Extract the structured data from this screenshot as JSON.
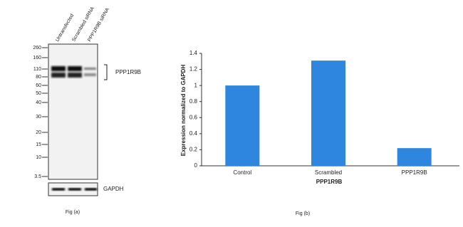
{
  "blot": {
    "lanes": [
      "Untransfected",
      "Scrambled siRNA",
      "PPP1R9B siRNA"
    ],
    "markers": [
      260,
      160,
      110,
      80,
      60,
      50,
      40,
      30,
      20,
      15,
      10,
      3.5
    ],
    "target": "PPP1R9B",
    "loading_control": "GAPDH",
    "caption": "Fig (a)"
  },
  "chart_data": {
    "type": "bar",
    "categories": [
      "Control",
      "Scrambled",
      "PPP1R9B"
    ],
    "values": [
      1.0,
      1.31,
      0.22
    ],
    "color": "#2e86de",
    "y_label": "Expression  normalized to GAPDH",
    "x_label": "PPP1R9B",
    "ylim": [
      0,
      1.4
    ],
    "yticks": [
      0,
      0.2,
      0.4,
      0.6,
      0.8,
      1,
      1.2,
      1.4
    ],
    "caption": "Fig (b)"
  }
}
